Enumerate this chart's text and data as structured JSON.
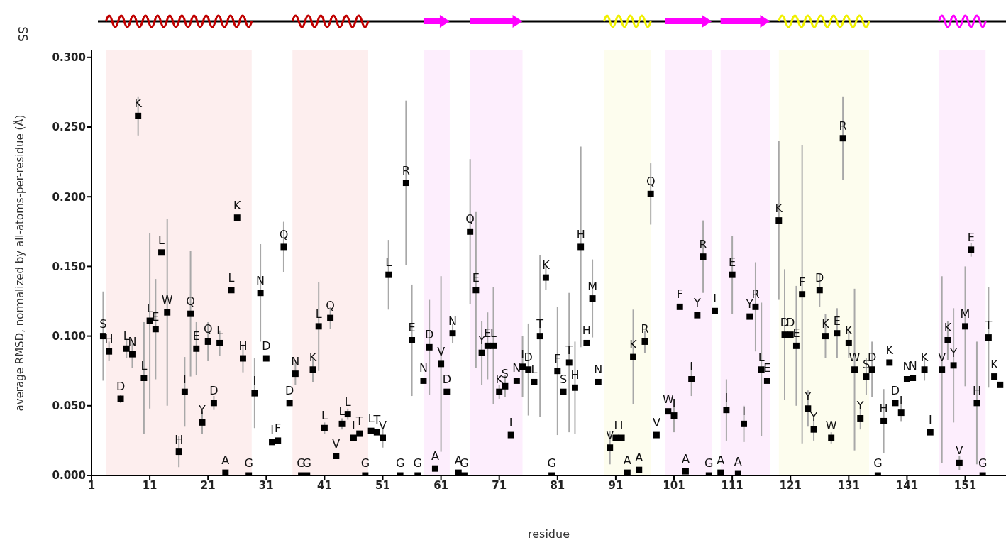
{
  "chart_data": {
    "type": "scatter",
    "xlabel": "residue",
    "ylabel": "average RMSD, normalized by all-atoms-per-residue (Å)",
    "marker": "square",
    "x": [
      3,
      4,
      6,
      7,
      8,
      9,
      10,
      11,
      12,
      13,
      14,
      16,
      17,
      18,
      19,
      20,
      21,
      22,
      23,
      24,
      25,
      26,
      27,
      28,
      29,
      30,
      31,
      32,
      33,
      34,
      35,
      36,
      37,
      38,
      39,
      40,
      41,
      42,
      43,
      44,
      45,
      46,
      47,
      48,
      49,
      50,
      51,
      52,
      54,
      55,
      56,
      57,
      58,
      59,
      60,
      61,
      62,
      63,
      64,
      65,
      66,
      67,
      68,
      69,
      70,
      71,
      72,
      73,
      74,
      75,
      76,
      77,
      78,
      79,
      80,
      81,
      82,
      83,
      84,
      85,
      86,
      87,
      88,
      90,
      91,
      92,
      93,
      94,
      95,
      96,
      97,
      98,
      100,
      101,
      102,
      103,
      104,
      105,
      106,
      107,
      108,
      109,
      110,
      111,
      112,
      113,
      114,
      115,
      116,
      117,
      119,
      120,
      121,
      122,
      123,
      124,
      125,
      126,
      127,
      128,
      129,
      130,
      131,
      132,
      133,
      134,
      135,
      136,
      137,
      138,
      139,
      140,
      141,
      142,
      144,
      145,
      147,
      148,
      149,
      150,
      151,
      152,
      153,
      154,
      155,
      156,
      157
    ],
    "series": [
      {
        "color": "#000000",
        "values": [
          0.1,
          0.089,
          0.055,
          0.091,
          0.087,
          0.258,
          0.07,
          0.111,
          0.105,
          0.16,
          0.117,
          0.017,
          0.06,
          0.116,
          0.091,
          0.038,
          0.096,
          0.052,
          0.095,
          0.002,
          0.133,
          0.185,
          0.084,
          0.0,
          0.059,
          0.131,
          0.084,
          0.024,
          0.025,
          0.164,
          0.052,
          0.073,
          0.0,
          0.0,
          0.076,
          0.107,
          0.034,
          0.113,
          0.014,
          0.037,
          0.044,
          0.027,
          0.03,
          0.0,
          0.032,
          0.031,
          0.027,
          0.144,
          0.0,
          0.21,
          0.097,
          0.0,
          0.068,
          0.092,
          0.005,
          0.08,
          0.06,
          0.102,
          0.002,
          0.0,
          0.175,
          0.133,
          0.088,
          0.093,
          0.093,
          0.06,
          0.064,
          0.029,
          0.068,
          0.078,
          0.076,
          0.067,
          0.1,
          0.142,
          0.0,
          0.075,
          0.06,
          0.081,
          0.063,
          0.164,
          0.095,
          0.127,
          0.067,
          0.02,
          0.027,
          0.027,
          0.002,
          0.085,
          0.004,
          0.096,
          0.202,
          0.029,
          0.046,
          0.043,
          0.121,
          0.003,
          0.069,
          0.115,
          0.157,
          0.0,
          0.118,
          0.002,
          0.047,
          0.144,
          0.001,
          0.037,
          0.114,
          0.121,
          0.076,
          0.068,
          0.183,
          0.101,
          0.101,
          0.093,
          0.13,
          0.048,
          0.033,
          0.133,
          0.1,
          0.027,
          0.102,
          0.242,
          0.095,
          0.076,
          0.041,
          0.071,
          0.076,
          0.0,
          0.039,
          0.081,
          0.052,
          0.045,
          0.069,
          0.07,
          0.076,
          0.031,
          0.076,
          0.097,
          0.079,
          0.009,
          0.107,
          0.162,
          0.052,
          0.0,
          0.099,
          0.071,
          0.065
        ],
        "errors": [
          0.032,
          0.007,
          0.003,
          0.007,
          0.01,
          0.014,
          0.04,
          0.063,
          0.036,
          null,
          0.067,
          0.011,
          0.025,
          0.045,
          0.019,
          0.008,
          0.014,
          0.005,
          0.009,
          null,
          null,
          null,
          0.01,
          null,
          0.025,
          0.035,
          null,
          null,
          null,
          0.018,
          null,
          0.008,
          null,
          null,
          0.009,
          0.032,
          0.004,
          0.008,
          null,
          0.004,
          0.004,
          null,
          null,
          null,
          null,
          null,
          0.007,
          0.025,
          null,
          0.059,
          0.04,
          null,
          null,
          0.034,
          null,
          0.063,
          null,
          0.007,
          null,
          null,
          0.052,
          0.056,
          0.023,
          0.024,
          0.042,
          0.005,
          0.008,
          null,
          null,
          0.022,
          0.033,
          null,
          0.058,
          0.009,
          null,
          0.046,
          null,
          0.05,
          0.033,
          0.072,
          null,
          0.028,
          null,
          0.012,
          null,
          null,
          null,
          0.034,
          null,
          0.008,
          0.022,
          null,
          null,
          0.012,
          null,
          null,
          0.012,
          null,
          0.026,
          null,
          null,
          null,
          0.022,
          0.028,
          null,
          0.013,
          null,
          0.032,
          0.048,
          null,
          0.057,
          0.047,
          null,
          0.043,
          0.107,
          0.013,
          0.008,
          0.012,
          0.016,
          0.004,
          0.018,
          0.03,
          0.011,
          0.058,
          0.008,
          0.013,
          0.02,
          null,
          0.023,
          null,
          null,
          0.006,
          null,
          null,
          0.008,
          null,
          0.067,
          0.014,
          0.041,
          0.005,
          0.043,
          0.005,
          0.044,
          null,
          0.036,
          null,
          null
        ]
      }
    ],
    "xlim": [
      1,
      158
    ],
    "xticks": [
      1,
      11,
      21,
      31,
      41,
      51,
      61,
      71,
      81,
      91,
      101,
      111,
      121,
      131,
      141,
      151
    ],
    "ylim": [
      0,
      0.305
    ],
    "yticks": [
      {
        "value": 0,
        "label": "0.000"
      },
      {
        "value": 0.05,
        "label": "0.050"
      },
      {
        "value": 0.1,
        "label": "0.100"
      },
      {
        "value": 0.15,
        "label": "0.150"
      },
      {
        "value": 0.2,
        "label": "0.200"
      },
      {
        "value": 0.25,
        "label": "0.250"
      },
      {
        "value": 0.3,
        "label": "0.300"
      }
    ],
    "bands": [
      {
        "axis": "x",
        "from": 3.5,
        "to": 28.5,
        "color": "#fdeeee"
      },
      {
        "axis": "x",
        "from": 35.5,
        "to": 48.5,
        "color": "#fdeeee"
      },
      {
        "axis": "x",
        "from": 58,
        "to": 62.5,
        "color": "#fdeefd"
      },
      {
        "axis": "x",
        "from": 66,
        "to": 75,
        "color": "#fdeefd"
      },
      {
        "axis": "x",
        "from": 89,
        "to": 97,
        "color": "#fdfdee"
      },
      {
        "axis": "x",
        "from": 99.5,
        "to": 107.5,
        "color": "#fdeefd"
      },
      {
        "axis": "x",
        "from": 109,
        "to": 117.5,
        "color": "#fdeefd"
      },
      {
        "axis": "x",
        "from": 119,
        "to": 134.5,
        "color": "#fdfdee"
      },
      {
        "axis": "x",
        "from": 146.5,
        "to": 154.5,
        "color": "#fdeefd"
      }
    ],
    "annotations": [
      "SS",
      {
        "text": "S",
        "x": 3,
        "y": 0.1
      },
      {
        "text": "H",
        "x": 4,
        "y": 0.089
      },
      {
        "text": "D",
        "x": 6,
        "y": 0.055
      },
      {
        "text": "L",
        "x": 7,
        "y": 0.091
      },
      {
        "text": "N",
        "x": 8,
        "y": 0.087
      },
      {
        "text": "K",
        "x": 9,
        "y": 0.258
      },
      {
        "text": "L",
        "x": 10,
        "y": 0.07
      },
      {
        "text": "L",
        "x": 11,
        "y": 0.111
      },
      {
        "text": "E",
        "x": 12,
        "y": 0.105
      },
      {
        "text": "L",
        "x": 13,
        "y": 0.16
      },
      {
        "text": "W",
        "x": 14,
        "y": 0.117
      },
      {
        "text": "H",
        "x": 16,
        "y": 0.017
      },
      {
        "text": "I",
        "x": 17,
        "y": 0.06
      },
      {
        "text": "Q",
        "x": 18,
        "y": 0.116
      },
      {
        "text": "E",
        "x": 19,
        "y": 0.091
      },
      {
        "text": "Y",
        "x": 20,
        "y": 0.038
      },
      {
        "text": "Q",
        "x": 21,
        "y": 0.096
      },
      {
        "text": "D",
        "x": 22,
        "y": 0.052
      },
      {
        "text": "L",
        "x": 23,
        "y": 0.095
      },
      {
        "text": "A",
        "x": 24,
        "y": 0.002
      },
      {
        "text": "L",
        "x": 25,
        "y": 0.133
      },
      {
        "text": "K",
        "x": 26,
        "y": 0.185
      },
      {
        "text": "H",
        "x": 27,
        "y": 0.084
      },
      {
        "text": "G",
        "x": 28,
        "y": 0.0
      },
      {
        "text": "I",
        "x": 29,
        "y": 0.059
      },
      {
        "text": "N",
        "x": 30,
        "y": 0.131
      },
      {
        "text": "D",
        "x": 31,
        "y": 0.084
      },
      {
        "text": "I",
        "x": 32,
        "y": 0.024
      },
      {
        "text": "F",
        "x": 33,
        "y": 0.025
      },
      {
        "text": "Q",
        "x": 34,
        "y": 0.164
      },
      {
        "text": "D",
        "x": 35,
        "y": 0.052
      },
      {
        "text": "N",
        "x": 36,
        "y": 0.073
      },
      {
        "text": "G",
        "x": 37,
        "y": 0.0
      },
      {
        "text": "G",
        "x": 38,
        "y": 0.0
      },
      {
        "text": "K",
        "x": 39,
        "y": 0.076
      },
      {
        "text": "L",
        "x": 40,
        "y": 0.107
      },
      {
        "text": "L",
        "x": 41,
        "y": 0.034
      },
      {
        "text": "Q",
        "x": 42,
        "y": 0.113
      },
      {
        "text": "V",
        "x": 43,
        "y": 0.014
      },
      {
        "text": "L",
        "x": 44,
        "y": 0.037
      },
      {
        "text": "L",
        "x": 45,
        "y": 0.044
      },
      {
        "text": "I",
        "x": 46,
        "y": 0.027
      },
      {
        "text": "T",
        "x": 47,
        "y": 0.03
      },
      {
        "text": "G",
        "x": 48,
        "y": 0.0
      },
      {
        "text": "L",
        "x": 49,
        "y": 0.032
      },
      {
        "text": "T",
        "x": 50,
        "y": 0.031
      },
      {
        "text": "V",
        "x": 51,
        "y": 0.027
      },
      {
        "text": "L",
        "x": 52,
        "y": 0.144
      },
      {
        "text": "G",
        "x": 54,
        "y": 0.0
      },
      {
        "text": "R",
        "x": 55,
        "y": 0.21
      },
      {
        "text": "E",
        "x": 56,
        "y": 0.097
      },
      {
        "text": "G",
        "x": 57,
        "y": 0.0
      },
      {
        "text": "N",
        "x": 58,
        "y": 0.068
      },
      {
        "text": "D",
        "x": 59,
        "y": 0.092
      },
      {
        "text": "A",
        "x": 60,
        "y": 0.005
      },
      {
        "text": "V",
        "x": 61,
        "y": 0.08
      },
      {
        "text": "D",
        "x": 62,
        "y": 0.06
      },
      {
        "text": "N",
        "x": 63,
        "y": 0.102
      },
      {
        "text": "A",
        "x": 64,
        "y": 0.002
      },
      {
        "text": "G",
        "x": 65,
        "y": 0.0
      },
      {
        "text": "Q",
        "x": 66,
        "y": 0.175
      },
      {
        "text": "E",
        "x": 67,
        "y": 0.133
      },
      {
        "text": "Y",
        "x": 68,
        "y": 0.088
      },
      {
        "text": "E",
        "x": 69,
        "y": 0.093
      },
      {
        "text": "L",
        "x": 70,
        "y": 0.093
      },
      {
        "text": "K",
        "x": 71,
        "y": 0.06
      },
      {
        "text": "S",
        "x": 72,
        "y": 0.064
      },
      {
        "text": "I",
        "x": 73,
        "y": 0.029
      },
      {
        "text": "N",
        "x": 74,
        "y": 0.068
      },
      {
        "text": "I",
        "x": 75,
        "y": 0.078
      },
      {
        "text": "D",
        "x": 76,
        "y": 0.076
      },
      {
        "text": "L",
        "x": 77,
        "y": 0.067
      },
      {
        "text": "T",
        "x": 78,
        "y": 0.1
      },
      {
        "text": "K",
        "x": 79,
        "y": 0.142
      },
      {
        "text": "G",
        "x": 80,
        "y": 0.0
      },
      {
        "text": "F",
        "x": 81,
        "y": 0.075
      },
      {
        "text": "S",
        "x": 82,
        "y": 0.06
      },
      {
        "text": "T",
        "x": 83,
        "y": 0.081
      },
      {
        "text": "H",
        "x": 84,
        "y": 0.063
      },
      {
        "text": "H",
        "x": 85,
        "y": 0.164
      },
      {
        "text": "H",
        "x": 86,
        "y": 0.095
      },
      {
        "text": "M",
        "x": 87,
        "y": 0.127
      },
      {
        "text": "N",
        "x": 88,
        "y": 0.067
      },
      {
        "text": "V",
        "x": 90,
        "y": 0.02
      },
      {
        "text": "I",
        "x": 91,
        "y": 0.027
      },
      {
        "text": "I",
        "x": 92,
        "y": 0.027
      },
      {
        "text": "A",
        "x": 93,
        "y": 0.002
      },
      {
        "text": "K",
        "x": 94,
        "y": 0.085
      },
      {
        "text": "A",
        "x": 95,
        "y": 0.004
      },
      {
        "text": "R",
        "x": 96,
        "y": 0.096
      },
      {
        "text": "Q",
        "x": 97,
        "y": 0.202
      },
      {
        "text": "V",
        "x": 98,
        "y": 0.029
      },
      {
        "text": "W",
        "x": 100,
        "y": 0.046
      },
      {
        "text": "I",
        "x": 101,
        "y": 0.043
      },
      {
        "text": "F",
        "x": 102,
        "y": 0.121
      },
      {
        "text": "A",
        "x": 103,
        "y": 0.003
      },
      {
        "text": "I",
        "x": 104,
        "y": 0.069
      },
      {
        "text": "Y",
        "x": 105,
        "y": 0.115
      },
      {
        "text": "R",
        "x": 106,
        "y": 0.157
      },
      {
        "text": "G",
        "x": 107,
        "y": 0.0
      },
      {
        "text": "I",
        "x": 108,
        "y": 0.118
      },
      {
        "text": "A",
        "x": 109,
        "y": 0.002
      },
      {
        "text": "I",
        "x": 110,
        "y": 0.047
      },
      {
        "text": "E",
        "x": 111,
        "y": 0.144
      },
      {
        "text": "A",
        "x": 112,
        "y": 0.001
      },
      {
        "text": "I",
        "x": 113,
        "y": 0.037
      },
      {
        "text": "Y",
        "x": 114,
        "y": 0.114
      },
      {
        "text": "R",
        "x": 115,
        "y": 0.121
      },
      {
        "text": "L",
        "x": 116,
        "y": 0.076
      },
      {
        "text": "E",
        "x": 117,
        "y": 0.068
      },
      {
        "text": "K",
        "x": 119,
        "y": 0.183
      },
      {
        "text": "D",
        "x": 120,
        "y": 0.101
      },
      {
        "text": "D",
        "x": 121,
        "y": 0.101
      },
      {
        "text": "E",
        "x": 122,
        "y": 0.093
      },
      {
        "text": "F",
        "x": 123,
        "y": 0.13
      },
      {
        "text": "Y",
        "x": 124,
        "y": 0.048
      },
      {
        "text": "Y",
        "x": 125,
        "y": 0.033
      },
      {
        "text": "D",
        "x": 126,
        "y": 0.133
      },
      {
        "text": "K",
        "x": 127,
        "y": 0.1
      },
      {
        "text": "W",
        "x": 128,
        "y": 0.027
      },
      {
        "text": "E",
        "x": 129,
        "y": 0.102
      },
      {
        "text": "R",
        "x": 130,
        "y": 0.242
      },
      {
        "text": "K",
        "x": 131,
        "y": 0.095
      },
      {
        "text": "W",
        "x": 132,
        "y": 0.076
      },
      {
        "text": "Y",
        "x": 133,
        "y": 0.041
      },
      {
        "text": "S",
        "x": 134,
        "y": 0.071
      },
      {
        "text": "D",
        "x": 135,
        "y": 0.076
      },
      {
        "text": "G",
        "x": 136,
        "y": 0.0
      },
      {
        "text": "H",
        "x": 137,
        "y": 0.039
      },
      {
        "text": "K",
        "x": 138,
        "y": 0.081
      },
      {
        "text": "D",
        "x": 139,
        "y": 0.052
      },
      {
        "text": "I",
        "x": 140,
        "y": 0.045
      },
      {
        "text": "N",
        "x": 141,
        "y": 0.069
      },
      {
        "text": "N",
        "x": 142,
        "y": 0.07
      },
      {
        "text": "K",
        "x": 144,
        "y": 0.076
      },
      {
        "text": "I",
        "x": 145,
        "y": 0.031
      },
      {
        "text": "V",
        "x": 147,
        "y": 0.076
      },
      {
        "text": "K",
        "x": 148,
        "y": 0.097
      },
      {
        "text": "Y",
        "x": 149,
        "y": 0.079
      },
      {
        "text": "V",
        "x": 150,
        "y": 0.009
      },
      {
        "text": "M",
        "x": 151,
        "y": 0.107
      },
      {
        "text": "E",
        "x": 152,
        "y": 0.162
      },
      {
        "text": "H",
        "x": 153,
        "y": 0.052
      },
      {
        "text": "G",
        "x": 154,
        "y": 0.0
      },
      {
        "text": "T",
        "x": 155,
        "y": 0.099
      },
      {
        "text": "K",
        "x": 156,
        "y": 0.071
      }
    ]
  }
}
